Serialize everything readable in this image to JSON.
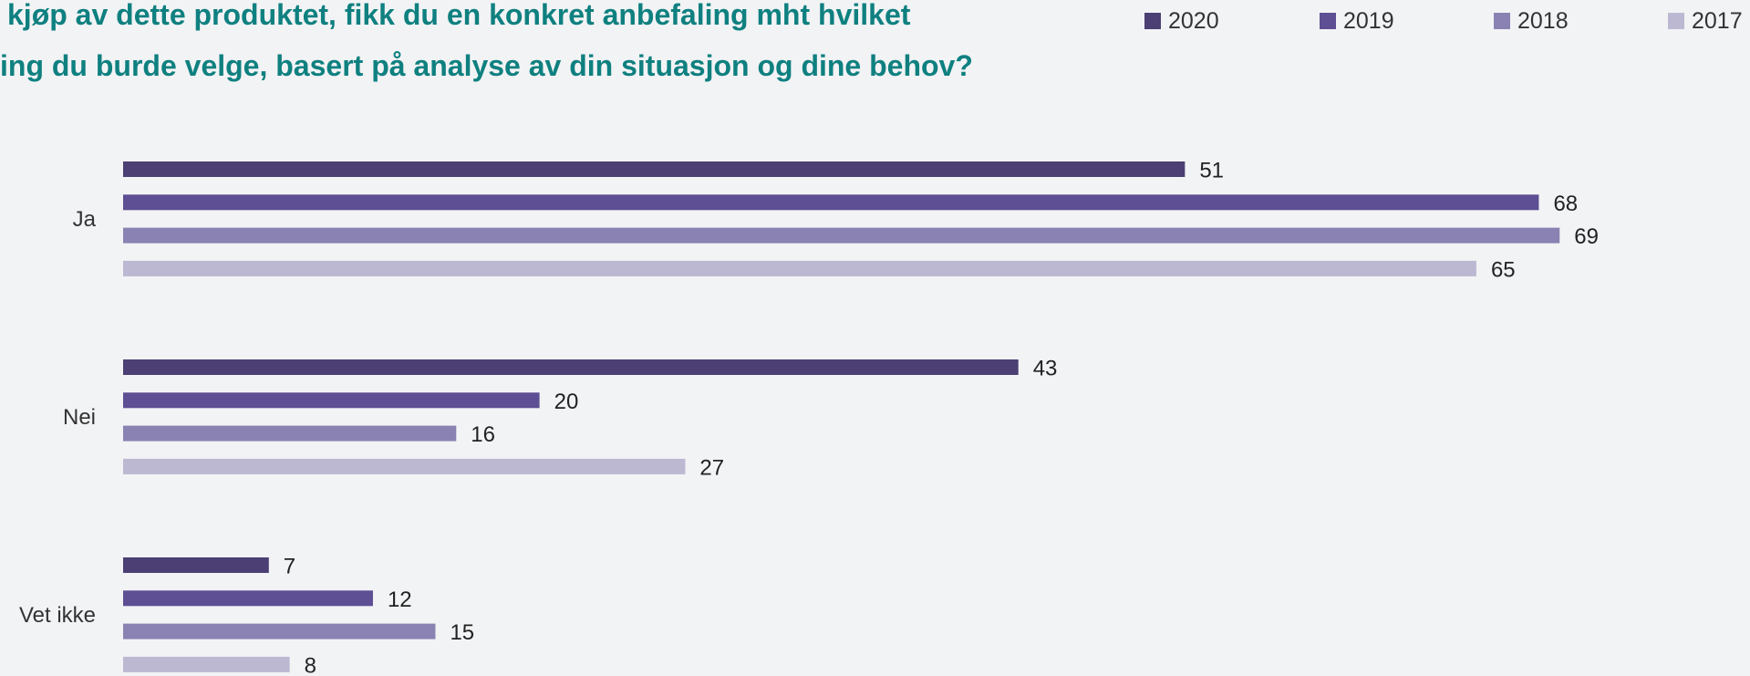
{
  "title": {
    "line1": "kjøp av dette produktet, fikk du en konkret anbefaling mht hvilket",
    "line2": "ing du burde velge, basert på analyse av din situasjon og dine behov?"
  },
  "colors": {
    "2020": "#4b3f73",
    "2019": "#5e4e93",
    "2018": "#8a82b2",
    "2017": "#bdb8d2",
    "title": "#0f8080",
    "background": "#f2f3f5"
  },
  "chart_data": {
    "type": "bar",
    "orientation": "horizontal",
    "title": "kjøp av dette produktet, fikk du en konkret anbefaling mht hvilket ing du burde velge, basert på analyse av din situasjon og dine behov?",
    "categories": [
      "Ja",
      "Nei",
      "Vet ikke"
    ],
    "series": [
      {
        "name": "2020",
        "values": [
          51,
          43,
          7
        ]
      },
      {
        "name": "2019",
        "values": [
          68,
          20,
          12
        ]
      },
      {
        "name": "2018",
        "values": [
          69,
          16,
          15
        ]
      },
      {
        "name": "2017",
        "values": [
          65,
          27,
          8
        ]
      }
    ],
    "xlim": [
      0,
      100
    ],
    "grid": false,
    "legend_position": "top-right",
    "data_labels": true
  }
}
